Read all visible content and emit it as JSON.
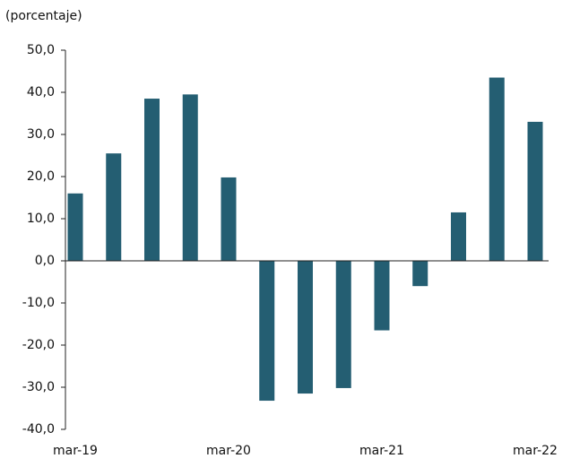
{
  "chart_data": {
    "type": "bar",
    "ylabel": "(porcentaje)",
    "categories": [
      "mar-19",
      null,
      null,
      null,
      "mar-20",
      null,
      null,
      null,
      "mar-21",
      null,
      null,
      null,
      "mar-22"
    ],
    "values": [
      16,
      25.5,
      38.5,
      39.5,
      19.8,
      -33.2,
      -31.5,
      -30.2,
      -16.5,
      -6,
      11.5,
      43.5,
      33
    ],
    "color": "#245e72",
    "ylim": [
      -40,
      50
    ],
    "yticks": [
      {
        "value": -40,
        "label": "-40,0"
      },
      {
        "value": -30,
        "label": "-30,0"
      },
      {
        "value": -20,
        "label": "-20,0"
      },
      {
        "value": -10,
        "label": "-10,0"
      },
      {
        "value": 0,
        "label": "0,0"
      },
      {
        "value": 10,
        "label": "10,0"
      },
      {
        "value": 20,
        "label": "20,0"
      },
      {
        "value": 30,
        "label": "30,0"
      },
      {
        "value": 40,
        "label": "40,0"
      },
      {
        "value": 50,
        "label": "50,0"
      }
    ],
    "grid": false
  }
}
